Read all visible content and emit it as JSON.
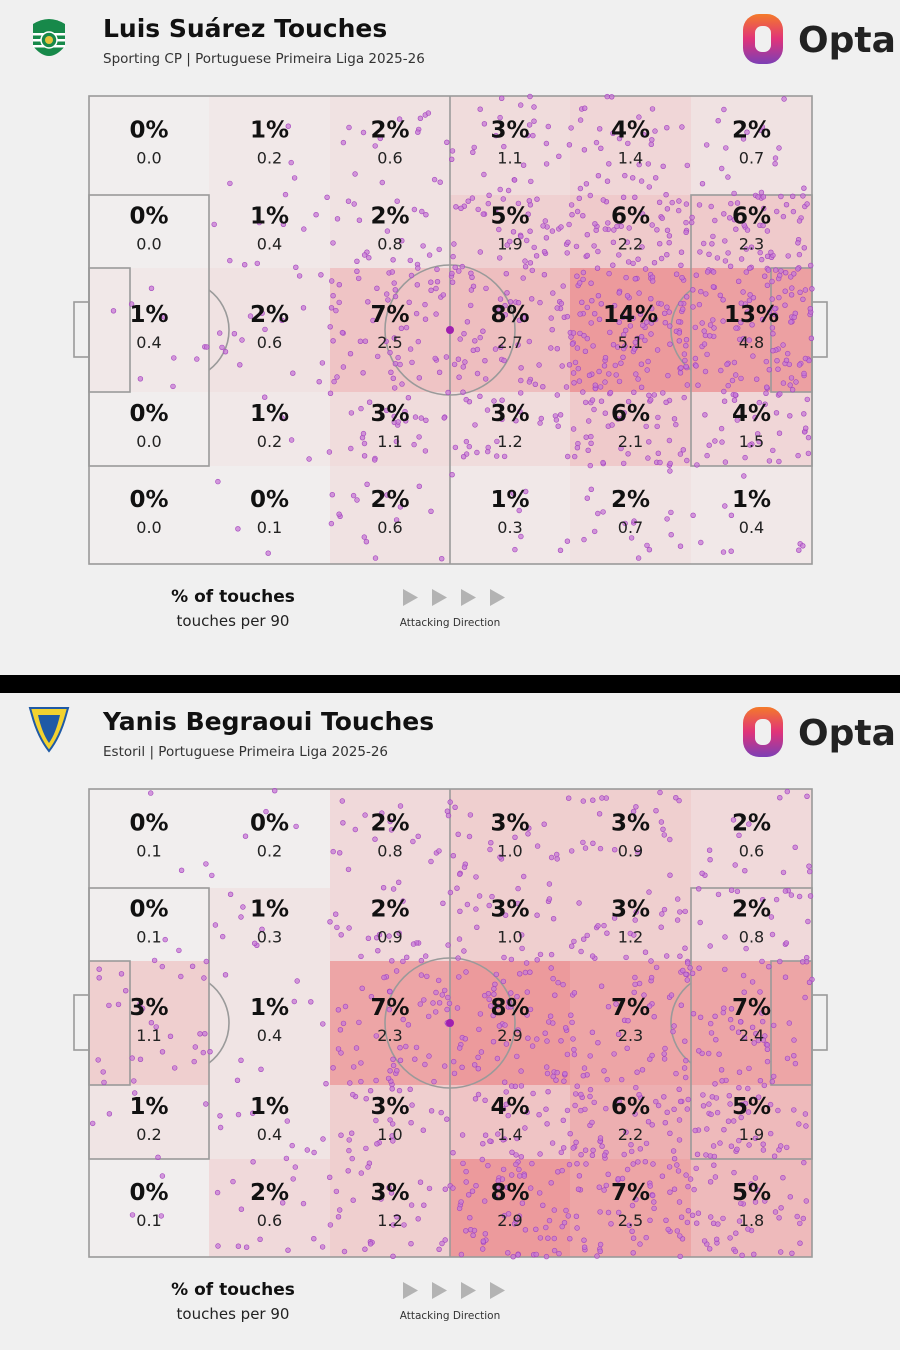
{
  "brand": {
    "logo_text": "Opta"
  },
  "legend": {
    "primary": "% of touches",
    "secondary": "touches per 90",
    "direction": "Attacking Direction"
  },
  "colors": {
    "background": "#f0f0f0",
    "cell_low": "#f1eeee",
    "cell_high": "#ec9a9c",
    "dot_fill": "#c77ad6",
    "dot_stroke": "#a344bd",
    "divider": "#000000"
  },
  "panels": [
    {
      "title": "Luis Suárez Touches",
      "subtitle": "Sporting CP | Portuguese Primeira Liga 2025-26",
      "crest_icon": "sporting-cp-crest-icon"
    },
    {
      "title": "Yanis Begraoui Touches",
      "subtitle": "Estoril | Portuguese Primeira Liga 2025-26",
      "crest_icon": "estoril-crest-icon"
    }
  ],
  "chart_data": [
    {
      "type": "heatmap",
      "title": "Luis Suárez Touches",
      "grid": "6 columns x 5 rows zones of pitch",
      "attacking_direction": "left-to-right",
      "pct_touches": [
        [
          0,
          1,
          2,
          3,
          4,
          2
        ],
        [
          0,
          1,
          2,
          5,
          6,
          6
        ],
        [
          1,
          2,
          7,
          8,
          14,
          13
        ],
        [
          0,
          1,
          3,
          3,
          6,
          4
        ],
        [
          0,
          0,
          2,
          1,
          2,
          1
        ]
      ],
      "touches_per_90": [
        [
          0.0,
          0.2,
          0.6,
          1.1,
          1.4,
          0.7
        ],
        [
          0.0,
          0.4,
          0.8,
          1.9,
          2.2,
          2.3
        ],
        [
          0.4,
          0.6,
          2.5,
          2.7,
          5.1,
          4.8
        ],
        [
          0.0,
          0.2,
          1.1,
          1.2,
          2.1,
          1.5
        ],
        [
          0.0,
          0.1,
          0.6,
          0.3,
          0.7,
          0.4
        ]
      ]
    },
    {
      "type": "heatmap",
      "title": "Yanis Begraoui Touches",
      "grid": "6 columns x 5 rows zones of pitch",
      "attacking_direction": "left-to-right",
      "pct_touches": [
        [
          0,
          0,
          2,
          3,
          3,
          2
        ],
        [
          0,
          1,
          2,
          3,
          3,
          2
        ],
        [
          3,
          1,
          7,
          8,
          7,
          7
        ],
        [
          1,
          1,
          3,
          4,
          6,
          5
        ],
        [
          0,
          2,
          3,
          8,
          7,
          5
        ]
      ],
      "touches_per_90": [
        [
          0.1,
          0.2,
          0.8,
          1.0,
          0.9,
          0.6
        ],
        [
          0.1,
          0.3,
          0.9,
          1.0,
          1.2,
          0.8
        ],
        [
          1.1,
          0.4,
          2.3,
          2.9,
          2.3,
          2.4
        ],
        [
          0.2,
          0.4,
          1.0,
          1.4,
          2.2,
          1.9
        ],
        [
          0.1,
          0.6,
          1.2,
          2.9,
          2.5,
          1.8
        ]
      ]
    }
  ]
}
